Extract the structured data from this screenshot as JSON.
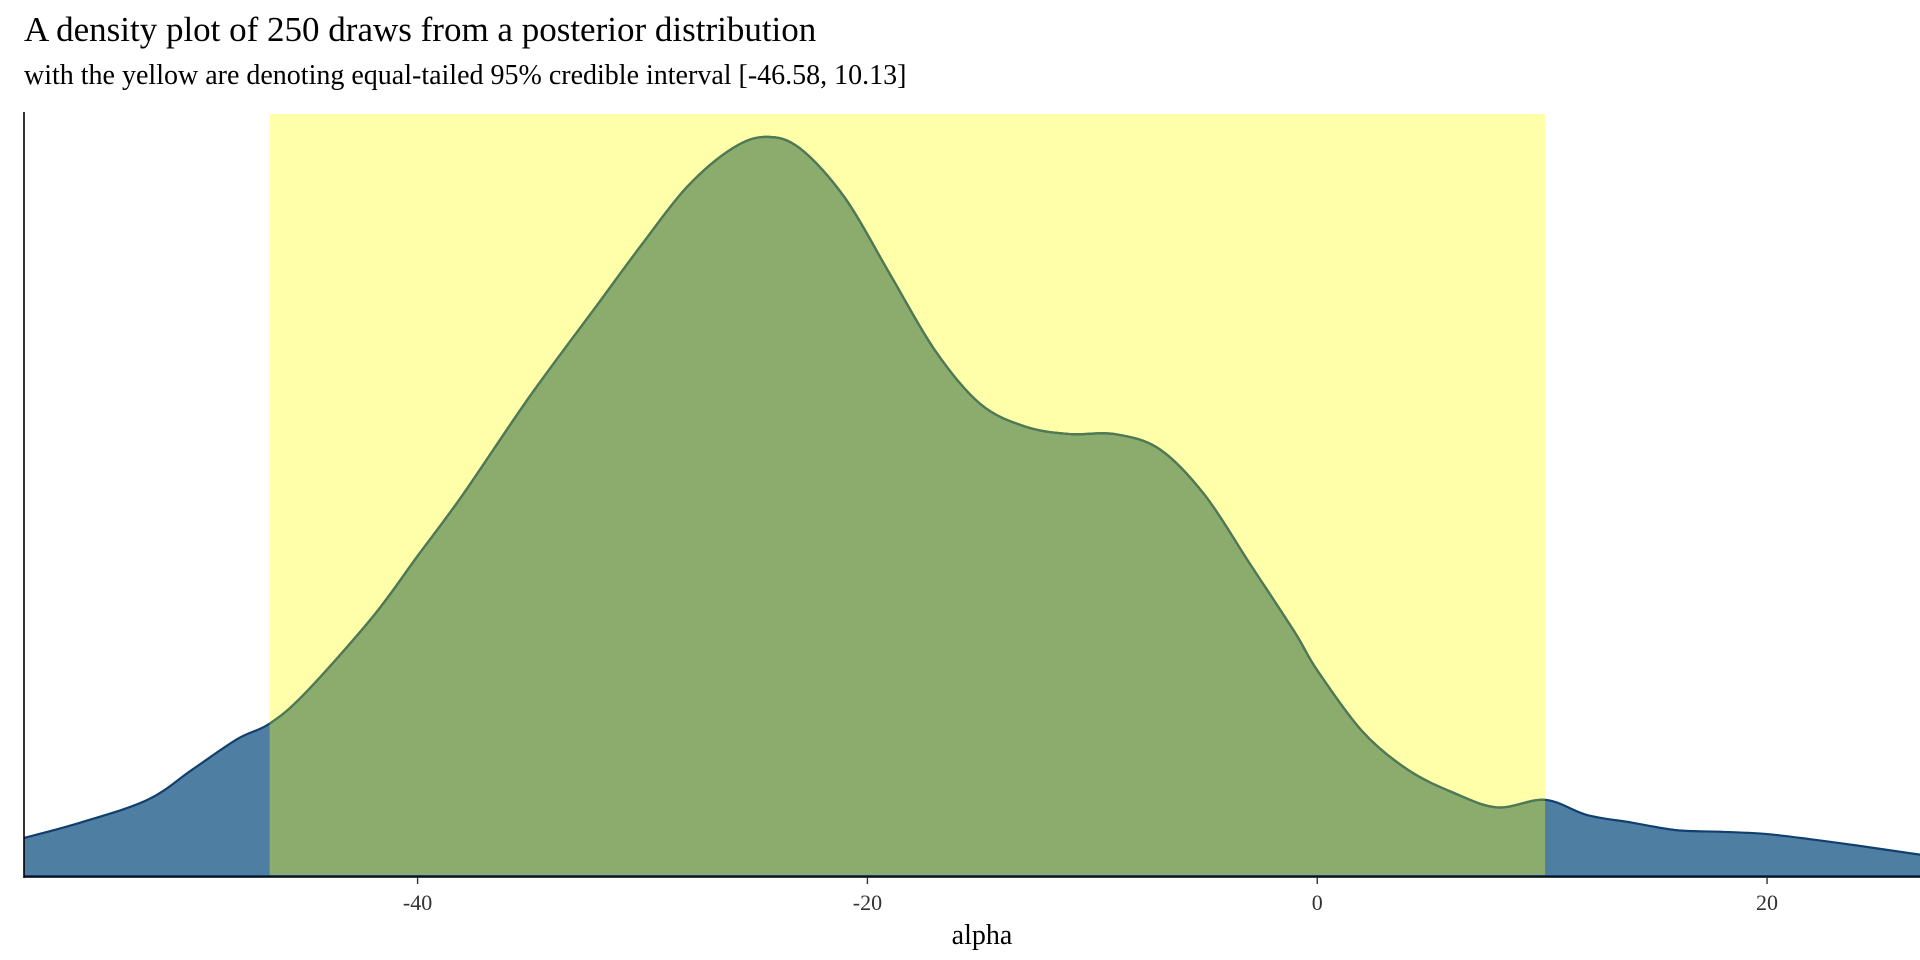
{
  "chart_data": {
    "type": "area",
    "title": "A density plot of 250 draws from a posterior distribution",
    "subtitle": "with the yellow are denoting equal-tailed 95% credible interval [-46.58, 10.13]",
    "xlabel": "alpha",
    "ylabel": "",
    "xlim": [
      -57.5,
      26.8
    ],
    "ylim": [
      0,
      1.0
    ],
    "x_ticks": [
      -40,
      -20,
      0,
      20
    ],
    "x_tick_labels": [
      "-40",
      "-20",
      "0",
      "20"
    ],
    "y_axis_tick_labels_shown": false,
    "grid": false,
    "interval": {
      "lower": -46.58,
      "upper": 10.13,
      "color": "#ffffaa"
    },
    "series": [
      {
        "x": [
          -57.5,
          -55,
          -52,
          -50,
          -48,
          -46.58,
          -45,
          -42,
          -40,
          -38,
          -35,
          -32,
          -30,
          -28,
          -26,
          -24.5,
          -23,
          -21,
          -19,
          -17,
          -15,
          -13,
          -11,
          -9,
          -7,
          -5,
          -3,
          -1,
          0,
          2,
          4,
          6,
          8,
          10.13,
          12,
          14,
          16,
          18,
          20,
          22,
          24,
          26.8
        ],
        "y": [
          0.05,
          0.07,
          0.1,
          0.14,
          0.18,
          0.2,
          0.24,
          0.34,
          0.42,
          0.5,
          0.63,
          0.75,
          0.83,
          0.905,
          0.955,
          0.97,
          0.955,
          0.89,
          0.79,
          0.69,
          0.62,
          0.59,
          0.58,
          0.58,
          0.56,
          0.5,
          0.41,
          0.32,
          0.27,
          0.19,
          0.14,
          0.11,
          0.09,
          0.1,
          0.08,
          0.07,
          0.06,
          0.058,
          0.055,
          0.048,
          0.04,
          0.028
        ],
        "color": "#4e7fa2",
        "inside_color": "#8cac6e"
      }
    ]
  }
}
